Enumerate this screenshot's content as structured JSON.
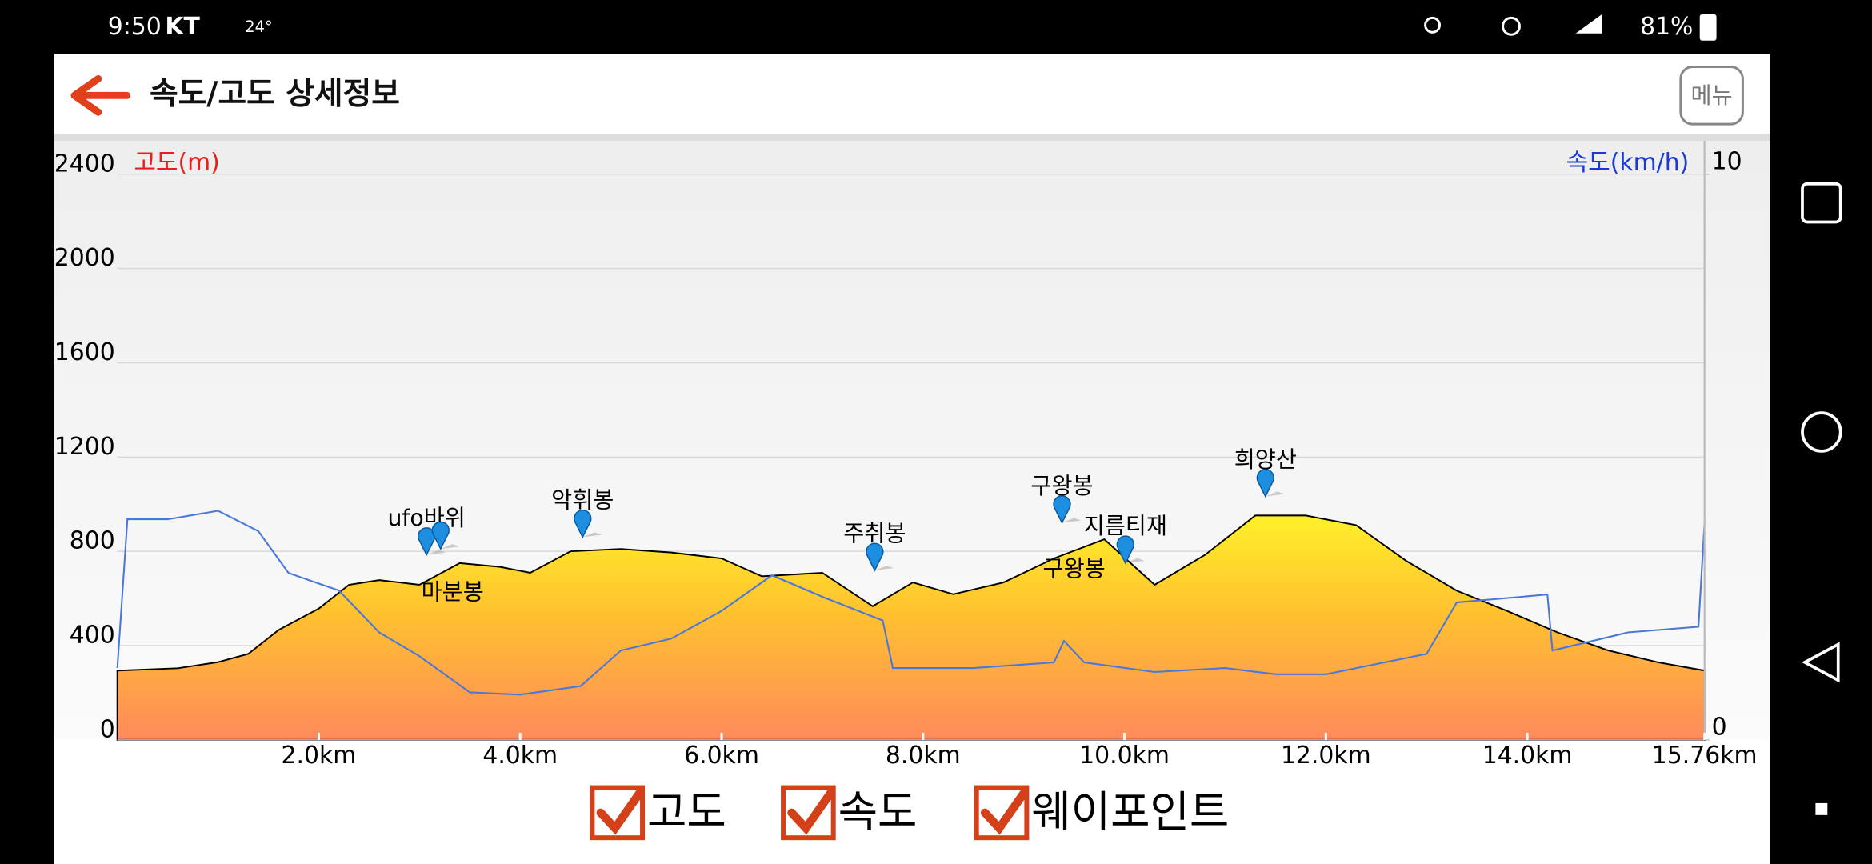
{
  "status_bar": {
    "time": "9:50",
    "carrier": "KT",
    "temperature": "24°",
    "battery": "81%"
  },
  "header": {
    "title": "속도/고도 상세정보",
    "menu": "메뉴"
  },
  "chart_data": {
    "type": "area-line",
    "y_label": "고도(m)",
    "y2_label": "속도(km/h)",
    "xlim": [
      0,
      15.76
    ],
    "xticks": [
      {
        "value": 2,
        "label": "2.0km"
      },
      {
        "value": 4,
        "label": "4.0km"
      },
      {
        "value": 6,
        "label": "6.0km"
      },
      {
        "value": 8,
        "label": "8.0km"
      },
      {
        "value": 10,
        "label": "10.0km"
      },
      {
        "value": 12,
        "label": "12.0km"
      },
      {
        "value": 14,
        "label": "14.0km"
      },
      {
        "value": 15.76,
        "label": "15.76km"
      }
    ],
    "ylim": [
      0,
      2400
    ],
    "yticks": [
      0,
      400,
      800,
      1200,
      1600,
      2000,
      2400
    ],
    "y2lim": [
      0,
      10
    ],
    "y2ticks": [
      0,
      10
    ],
    "grid": true,
    "series": [
      {
        "name": "고도",
        "color": "#000000",
        "x": [
          0,
          0.6,
          1.0,
          1.3,
          1.6,
          2.0,
          2.3,
          2.6,
          3.0,
          3.4,
          3.8,
          4.1,
          4.5,
          5.0,
          5.5,
          6.0,
          6.4,
          7.0,
          7.5,
          7.9,
          8.3,
          8.8,
          9.3,
          9.8,
          10.3,
          10.8,
          11.3,
          11.8,
          12.3,
          12.8,
          13.3,
          13.8,
          14.3,
          14.8,
          15.3,
          15.76
        ],
        "values": [
          294,
          304,
          330,
          365,
          466,
          557,
          658,
          678,
          658,
          750,
          734,
          709,
          800,
          810,
          795,
          770,
          694,
          709,
          567,
          668,
          618,
          668,
          770,
          851,
          658,
          785,
          952,
          952,
          911,
          759,
          633,
          547,
          456,
          380,
          329,
          294
        ]
      },
      {
        "name": "속도",
        "color": "#4a78d8",
        "axis": "y2",
        "x": [
          0,
          0.1,
          0.5,
          1.0,
          1.4,
          1.7,
          2.2,
          2.6,
          3.0,
          3.5,
          4.0,
          4.6,
          5.0,
          5.5,
          6.0,
          6.5,
          7.0,
          7.6,
          7.7,
          8.5,
          9.3,
          9.4,
          9.6,
          10.3,
          11.0,
          11.5,
          12.0,
          13.0,
          13.3,
          14.2,
          14.25,
          15.0,
          15.7,
          15.76
        ],
        "values": [
          1.27,
          3.9,
          3.9,
          4.05,
          3.69,
          2.95,
          2.64,
          1.9,
          1.48,
          0.84,
          0.8,
          0.95,
          1.58,
          1.79,
          2.28,
          2.91,
          2.53,
          2.11,
          1.27,
          1.27,
          1.37,
          1.75,
          1.37,
          1.2,
          1.27,
          1.16,
          1.16,
          1.52,
          2.43,
          2.57,
          1.58,
          1.9,
          2.0,
          3.84
        ]
      }
    ],
    "waypoints": [
      {
        "name": "ufo바위",
        "x": 3.07,
        "y": 785,
        "label": "above"
      },
      {
        "name": "마분봉",
        "x": 3.21,
        "y": 810,
        "label": "below"
      },
      {
        "name": "악휘봉",
        "x": 4.62,
        "y": 860,
        "label": "above"
      },
      {
        "name": "주취봉",
        "x": 7.52,
        "y": 719,
        "label": "above"
      },
      {
        "name": "구왕봉",
        "x": 9.38,
        "y": 921,
        "label": "above"
      },
      {
        "name": "지름티재",
        "x": 10.01,
        "y": 750,
        "label": "above"
      },
      {
        "name": "희양산",
        "x": 11.4,
        "y": 1033,
        "label": "above"
      }
    ],
    "annotations": [
      {
        "text": "구왕봉",
        "x": 9.5,
        "y": 720
      }
    ]
  },
  "checkboxes": [
    "고도",
    "속도",
    "웨이포인트"
  ]
}
